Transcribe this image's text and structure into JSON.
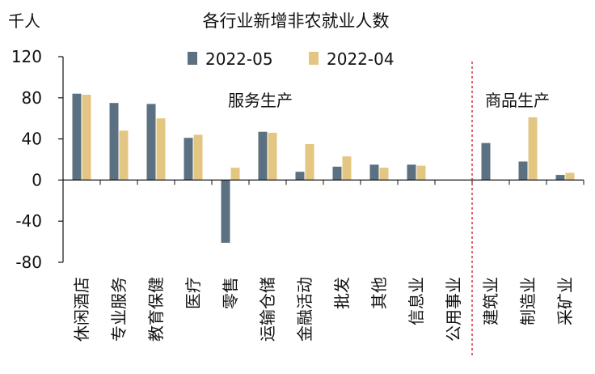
{
  "chart_data": {
    "type": "bar",
    "title": "各行业新增非农就业人数",
    "ylabel": "千人",
    "xlabel": "",
    "ylim": [
      -80,
      120
    ],
    "yticks": [
      120,
      80,
      40,
      0,
      -40,
      -80
    ],
    "grid": false,
    "legend_position": "top-center",
    "categories": [
      "休闲酒店",
      "专业服务",
      "教育保健",
      "医疗",
      "零售",
      "运输仓储",
      "金融活动",
      "批发",
      "其他",
      "信息业",
      "公用事业",
      "建筑业",
      "制造业",
      "采矿业"
    ],
    "series": [
      {
        "name": "2022-05",
        "color": "#5b7080",
        "values": [
          84,
          75,
          74,
          41,
          -61,
          47,
          8,
          13,
          15,
          15,
          0,
          36,
          18,
          5
        ]
      },
      {
        "name": "2022-04",
        "color": "#e3c682",
        "values": [
          83,
          48,
          60,
          44,
          12,
          46,
          35,
          23,
          12,
          14,
          0,
          0,
          61,
          7
        ]
      }
    ],
    "annotations": [
      {
        "text": "服务生产"
      },
      {
        "text": "商品生产"
      }
    ],
    "divider_color": "#cc0000"
  }
}
